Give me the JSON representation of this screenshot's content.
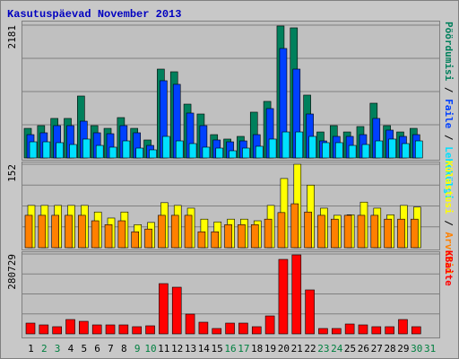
{
  "chart_data": [
    {
      "type": "bar",
      "title": "Kasutuspäevad November 2013",
      "legend_separator": " / ",
      "ylim": [
        0,
        2181
      ],
      "yticks": [
        2181
      ],
      "series": [
        {
          "name": "Pöördumisi",
          "color": "#00805c",
          "values": [
            486,
            531,
            649,
            649,
            1017,
            531,
            486,
            663,
            486,
            295,
            1459,
            1415,
            884,
            722,
            383,
            310,
            354,
            752,
            929,
            2167,
            2137,
            1032,
            427,
            531,
            427,
            516,
            899,
            531,
            427,
            486,
            null
          ]
        },
        {
          "name": "Faile",
          "color": "#0040ff",
          "values": [
            383,
            413,
            531,
            531,
            604,
            413,
            398,
            531,
            413,
            206,
            1268,
            1209,
            737,
            531,
            295,
            265,
            280,
            383,
            811,
            1798,
            1459,
            722,
            280,
            354,
            354,
            383,
            649,
            457,
            354,
            383,
            null
          ]
        },
        {
          "name": "Lehekülgi",
          "color": "#00e0ff",
          "values": [
            265,
            265,
            251,
            221,
            310,
            206,
            177,
            280,
            162,
            133,
            354,
            280,
            236,
            177,
            162,
            118,
            162,
            192,
            310,
            427,
            427,
            354,
            251,
            251,
            206,
            221,
            280,
            310,
            236,
            280,
            null
          ]
        }
      ]
    },
    {
      "type": "bar",
      "ylim": [
        0,
        152
      ],
      "yticks": [
        152
      ],
      "series": [
        {
          "name": "Külastusi",
          "color": "#ffff00",
          "values": [
            77,
            77,
            77,
            77,
            77,
            65,
            54,
            65,
            42,
            46,
            82,
            77,
            72,
            52,
            47,
            52,
            52,
            49,
            77,
            126,
            152,
            114,
            72,
            59,
            60,
            83,
            72,
            60,
            77,
            74,
            null
          ]
        },
        {
          "name": "Arvutid",
          "color": "#ff8000",
          "values": [
            59,
            59,
            59,
            59,
            59,
            49,
            42,
            49,
            29,
            34,
            59,
            59,
            59,
            29,
            29,
            42,
            42,
            42,
            52,
            64,
            80,
            65,
            59,
            52,
            59,
            59,
            59,
            52,
            52,
            52,
            null
          ]
        }
      ]
    },
    {
      "type": "bar",
      "ylim": [
        0,
        280729
      ],
      "yticks": [
        280729
      ],
      "categories": [
        "1",
        "2",
        "3",
        "4",
        "5",
        "6",
        "7",
        "8",
        "9",
        "10",
        "11",
        "12",
        "13",
        "14",
        "15",
        "16",
        "17",
        "18",
        "19",
        "20",
        "21",
        "22",
        "23",
        "24",
        "25",
        "26",
        "27",
        "28",
        "29",
        "30",
        "31"
      ],
      "category_colors": [
        "#000000",
        "#008040",
        "#008040",
        "#000000",
        "#000000",
        "#000000",
        "#000000",
        "#000000",
        "#008040",
        "#008040",
        "#000000",
        "#000000",
        "#000000",
        "#000000",
        "#000000",
        "#008040",
        "#008040",
        "#000000",
        "#000000",
        "#000000",
        "#000000",
        "#000000",
        "#008040",
        "#008040",
        "#000000",
        "#000000",
        "#000000",
        "#000000",
        "#000000",
        "#008040",
        "#008040"
      ],
      "series": [
        {
          "name": "KBaite",
          "color": "#ff0000",
          "values": [
            37850,
            31540,
            25232,
            50464,
            44156,
            31540,
            31540,
            31540,
            25232,
            28386,
            176624,
            164008,
            69388,
            41002,
            18924,
            37850,
            37850,
            25232,
            63080,
            261782,
            277552,
            154546,
            18924,
            18924,
            34694,
            31540,
            25232,
            25232,
            50464,
            25232,
            null
          ]
        }
      ]
    }
  ]
}
